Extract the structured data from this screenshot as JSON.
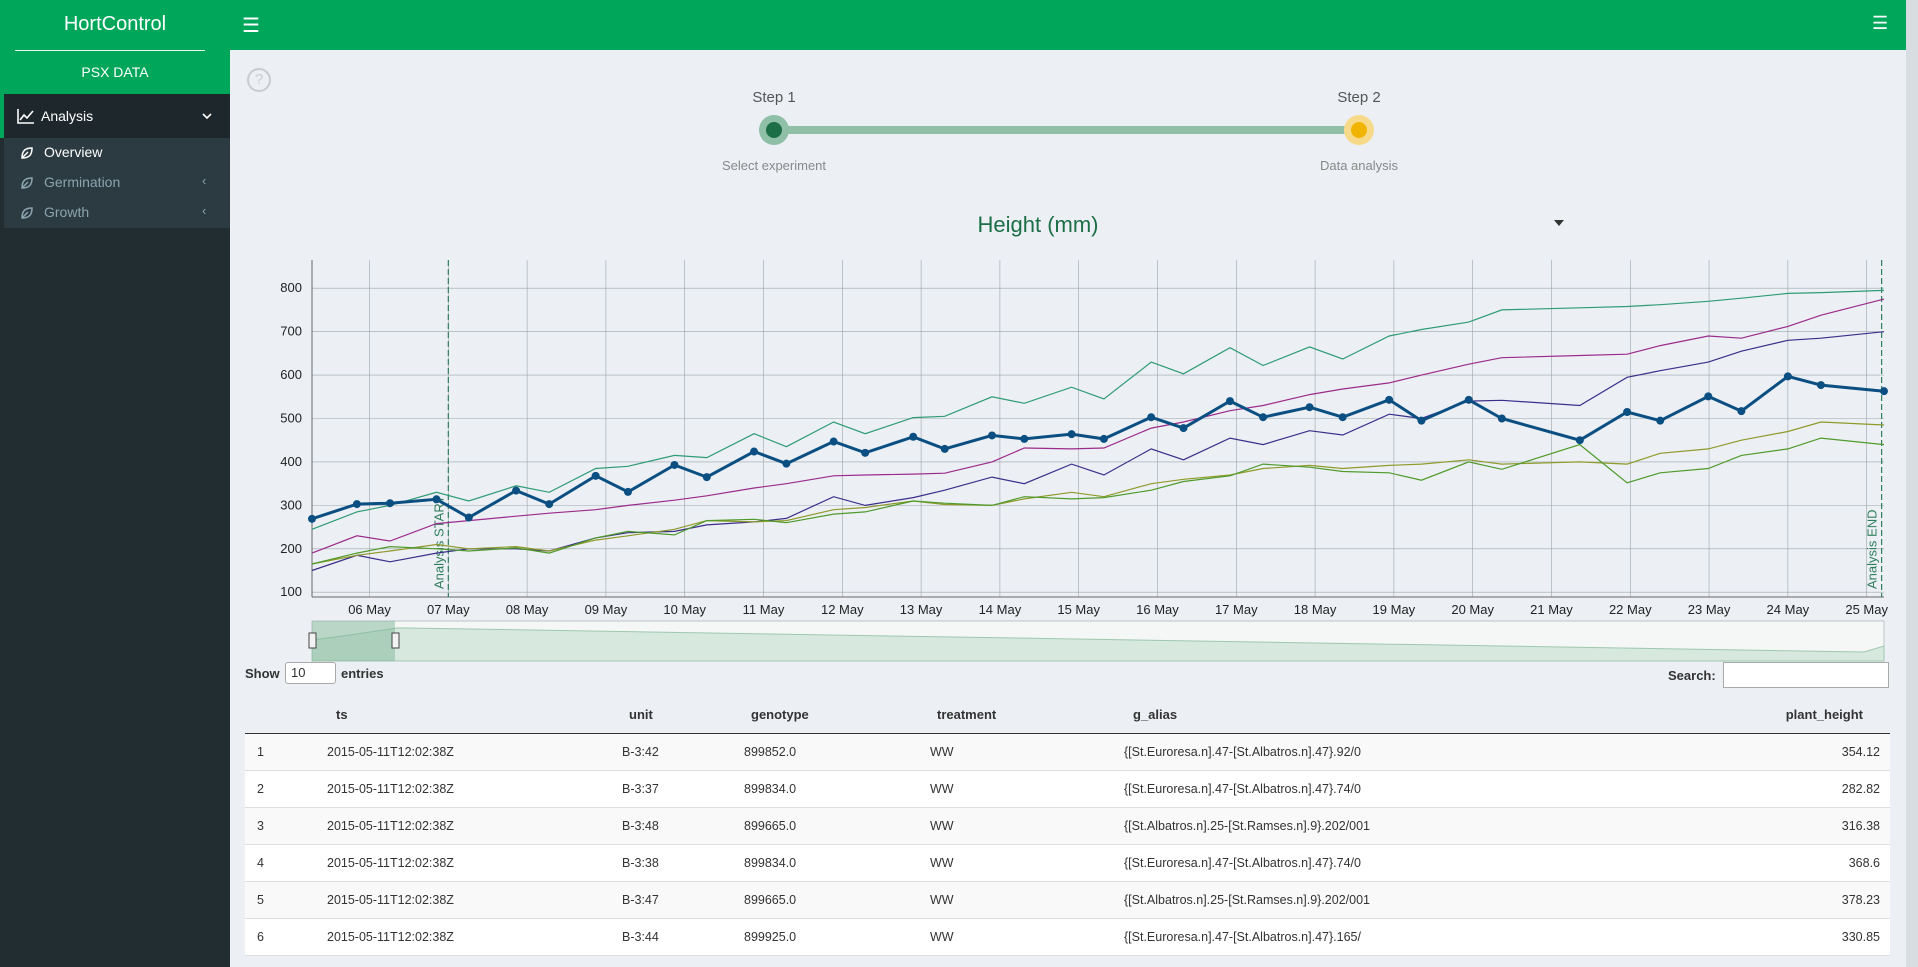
{
  "sidebar": {
    "brand": "HortControl",
    "subtitle": "PSX DATA",
    "menu": {
      "label": "Analysis",
      "items": [
        "Overview",
        "Germination",
        "Growth"
      ]
    }
  },
  "stepper": {
    "steps": [
      {
        "title": "Step 1",
        "caption": "Select experiment"
      },
      {
        "title": "Step 2",
        "caption": "Data analysis"
      }
    ]
  },
  "chart_data": {
    "type": "line",
    "title": "Height (mm)",
    "x": [
      5.27,
      5.84,
      6.26,
      6.85,
      7.26,
      7.86,
      8.28,
      8.87,
      9.28,
      9.87,
      10.28,
      10.88,
      11.29,
      11.89,
      12.29,
      12.9,
      13.3,
      13.9,
      14.31,
      14.91,
      15.32,
      15.92,
      16.33,
      16.92,
      17.34,
      17.93,
      18.35,
      18.94,
      19.35,
      19.95,
      20.37,
      21.36,
      21.96,
      22.38,
      22.99,
      23.41,
      24.0,
      24.42,
      25.22
    ],
    "series": [
      {
        "color": "#2e9b74",
        "values": [
          245,
          285,
          300,
          330,
          310,
          345,
          330,
          385,
          390,
          415,
          410,
          465,
          435,
          492,
          465,
          502,
          505,
          550,
          535,
          572,
          545,
          630,
          603,
          663,
          622,
          665,
          637,
          690,
          705,
          722,
          750,
          755,
          758,
          762,
          770,
          777,
          788,
          790,
          795
        ]
      },
      {
        "color": "#9c2a8a",
        "values": [
          190,
          230,
          218,
          258,
          265,
          275,
          282,
          290,
          300,
          312,
          322,
          340,
          350,
          368,
          370,
          372,
          374,
          400,
          432,
          430,
          432,
          478,
          492,
          518,
          530,
          555,
          568,
          582,
          600,
          625,
          640,
          645,
          648,
          668,
          690,
          685,
          712,
          738,
          775
        ]
      },
      {
        "color": "#3b2d8a",
        "values": [
          150,
          185,
          170,
          190,
          200,
          200,
          195,
          225,
          237,
          240,
          255,
          262,
          270,
          320,
          300,
          318,
          335,
          365,
          350,
          395,
          370,
          430,
          405,
          455,
          440,
          472,
          462,
          510,
          500,
          540,
          542,
          530,
          595,
          610,
          630,
          655,
          680,
          685,
          700
        ]
      },
      {
        "color": "#8f9a2a",
        "values": [
          165,
          185,
          195,
          210,
          200,
          205,
          195,
          220,
          230,
          245,
          265,
          262,
          265,
          290,
          295,
          310,
          302,
          300,
          315,
          330,
          320,
          350,
          360,
          370,
          385,
          392,
          385,
          392,
          395,
          405,
          395,
          400,
          395,
          420,
          430,
          450,
          470,
          492,
          485
        ]
      },
      {
        "color": "#4f9a2a",
        "values": [
          165,
          190,
          205,
          200,
          195,
          202,
          190,
          225,
          240,
          232,
          265,
          268,
          260,
          280,
          285,
          310,
          305,
          300,
          320,
          315,
          318,
          335,
          355,
          368,
          395,
          388,
          378,
          375,
          358,
          400,
          383,
          440,
          352,
          375,
          385,
          415,
          430,
          455,
          440
        ]
      },
      {
        "color": "#0b4f82",
        "markers": true,
        "line_width": 3,
        "values": [
          269,
          303,
          305,
          314,
          272,
          334,
          303,
          368,
          331,
          393,
          365,
          424,
          396,
          447,
          421,
          458,
          430,
          461,
          453,
          464,
          453,
          503,
          478,
          540,
          503,
          526,
          503,
          543,
          495,
          543,
          500,
          450,
          515,
          495,
          551,
          517,
          597,
          577,
          563
        ]
      }
    ],
    "xlim": [
      5.27,
      25.22
    ],
    "xticks": [
      {
        "value": 6,
        "label": "06 May"
      },
      {
        "value": 7,
        "label": "07 May"
      },
      {
        "value": 8,
        "label": "08 May"
      },
      {
        "value": 9,
        "label": "09 May"
      },
      {
        "value": 10,
        "label": "10 May"
      },
      {
        "value": 11,
        "label": "11 May"
      },
      {
        "value": 12,
        "label": "12 May"
      },
      {
        "value": 13,
        "label": "13 May"
      },
      {
        "value": 14,
        "label": "14 May"
      },
      {
        "value": 15,
        "label": "15 May"
      },
      {
        "value": 16,
        "label": "16 May"
      },
      {
        "value": 17,
        "label": "17 May"
      },
      {
        "value": 18,
        "label": "18 May"
      },
      {
        "value": 19,
        "label": "19 May"
      },
      {
        "value": 20,
        "label": "20 May"
      },
      {
        "value": 21,
        "label": "21 May"
      },
      {
        "value": 22,
        "label": "22 May"
      },
      {
        "value": 23,
        "label": "23 May"
      },
      {
        "value": 24,
        "label": "24 May"
      },
      {
        "value": 25,
        "label": "25 May"
      }
    ],
    "ylim": [
      89,
      865
    ],
    "yticks": [
      100,
      200,
      300,
      400,
      500,
      600,
      700,
      800
    ],
    "grid": true,
    "annotations": [
      {
        "text": "Analysis START",
        "x": 7.0
      },
      {
        "text": "Analysis END",
        "x": 25.19
      }
    ]
  },
  "table": {
    "show": "Show",
    "page_size": "10",
    "entries": "entries",
    "search": "Search:",
    "columns": [
      "ts",
      "unit",
      "genotype",
      "treatment",
      "g_alias",
      "plant_height"
    ],
    "rows": [
      [
        "1",
        "2015-05-11T12:02:38Z",
        "B-3:42",
        "899852.0",
        "WW",
        "{[St.Euroresa.n].47-[St.Albatros.n].47}.92/0",
        "354.12"
      ],
      [
        "2",
        "2015-05-11T12:02:38Z",
        "B-3:37",
        "899834.0",
        "WW",
        "{[St.Euroresa.n].47-[St.Albatros.n].47}.74/0",
        "282.82"
      ],
      [
        "3",
        "2015-05-11T12:02:38Z",
        "B-3:48",
        "899665.0",
        "WW",
        "{[St.Albatros.n].25-[St.Ramses.n].9}.202/001",
        "316.38"
      ],
      [
        "4",
        "2015-05-11T12:02:38Z",
        "B-3:38",
        "899834.0",
        "WW",
        "{[St.Euroresa.n].47-[St.Albatros.n].47}.74/0",
        "368.6"
      ],
      [
        "5",
        "2015-05-11T12:02:38Z",
        "B-3:47",
        "899665.0",
        "WW",
        "{[St.Albatros.n].25-[St.Ramses.n].9}.202/001",
        "378.23"
      ],
      [
        "6",
        "2015-05-11T12:02:38Z",
        "B-3:44",
        "899925.0",
        "WW",
        "{[St.Euroresa.n].47-[St.Albatros.n].47}.165/",
        "330.85"
      ]
    ]
  }
}
